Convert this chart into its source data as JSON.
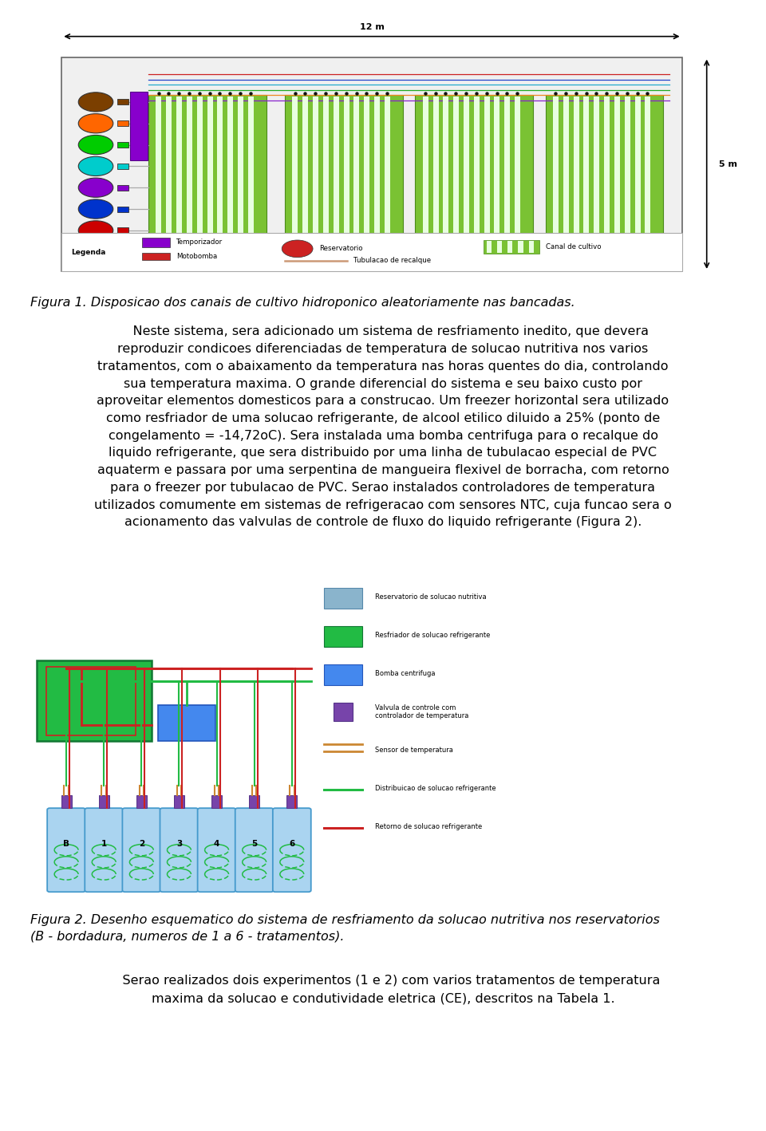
{
  "page_bg": "#ffffff",
  "fig_width": 9.6,
  "fig_height": 14.18,
  "dpi": 100,
  "paragraph1": "    Neste sistema, sera adicionado um sistema de resfriamento inedito, que devera\nreproduzir condicoes diferenciadas de temperatura de solucao nutritiva nos varios\ntratamentos, com o abaixamento da temperatura nas horas quentes do dia, controlando\nsua temperatura maxima. O grande diferencial do sistema e seu baixo custo por\naproveitar elementos domesticos para a construcao. Um freezer horizontal sera utilizado\ncomo resfriador de uma solucao refrigerante, de alcool etilico diluido a 25% (ponto de\ncongelamento = -14,72oC). Sera instalada uma bomba centrifuga para o recalque do\nliquido refrigerante, que sera distribuido por uma linha de tubulacao especial de PVC\naquaterm e passara por uma serpentina de mangueira flexivel de borracha, com retorno\npara o freezer por tubulacao de PVC. Serao instalados controladores de temperatura\nutilizados comumente em sistemas de refrigeracao com sensores NTC, cuja funcao sera o\nacionamento das valvulas de controle de fluxo do liquido refrigerante (Figura 2).",
  "fig1_caption": "Figura 1. Disposicao dos canais de cultivo hidroponico aleatoriamente nas bancadas.",
  "fig2_caption": "Figura 2. Desenho esquematico do sistema de resfriamento da solucao nutritiva nos reservatorios\n(B - bordadura, numeros de 1 a 6 - tratamentos).",
  "paragraph2": "    Serao realizados dois experimentos (1 e 2) com varios tratamentos de temperatura\nmaxima da solucao e condutividade eletrica (CE), descritos na Tabela 1.",
  "text_fontsize": 11.5,
  "caption_fontsize": 11.5,
  "text_color": "#000000"
}
